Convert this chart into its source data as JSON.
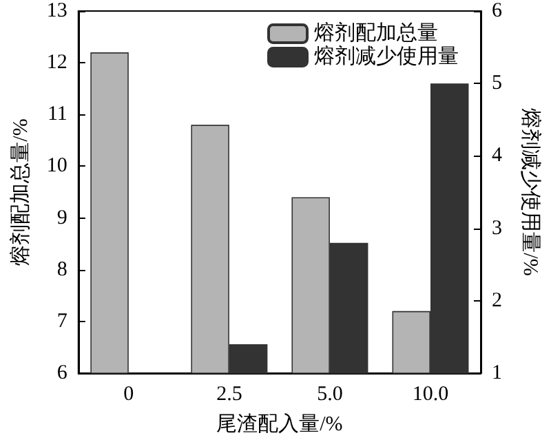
{
  "chart_data": {
    "type": "bar",
    "xlabel": "尾渣配入量/%",
    "ylabel": "熔剂配加总量/%",
    "y2label": "熔剂减少使用量/%",
    "categories": [
      "0",
      "2.5",
      "5.0",
      "10.0"
    ],
    "series": [
      {
        "name": "熔剂配加总量",
        "color": "#b4b4b4",
        "values": [
          12.2,
          10.8,
          9.4,
          7.2
        ]
      },
      {
        "name": "熔剂减少使用量",
        "color": "#333333",
        "values": [
          1,
          1.4,
          2.8,
          5.0
        ],
        "axis": "y2"
      }
    ],
    "ylim": [
      6,
      13
    ],
    "yticks": [
      6,
      7,
      8,
      9,
      10,
      11,
      12,
      13
    ],
    "y2lim": [
      1,
      6
    ],
    "y2ticks": [
      1,
      2,
      3,
      4,
      5,
      6
    ],
    "grid": false,
    "legend": "top right"
  }
}
